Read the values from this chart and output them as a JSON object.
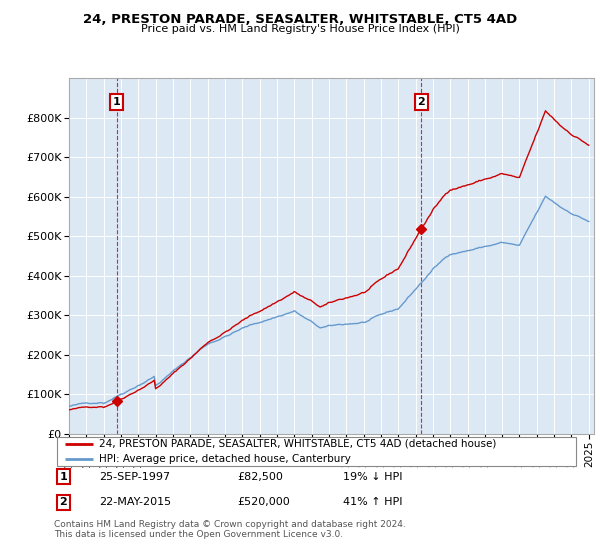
{
  "title": "24, PRESTON PARADE, SEASALTER, WHITSTABLE, CT5 4AD",
  "subtitle": "Price paid vs. HM Land Registry's House Price Index (HPI)",
  "sale1_note": "25-SEP-1997",
  "sale1_price": 82500,
  "sale1_pct": "19% ↓ HPI",
  "sale2_note": "22-MAY-2015",
  "sale2_price": 520000,
  "sale2_pct": "41% ↑ HPI",
  "legend_property": "24, PRESTON PARADE, SEASALTER, WHITSTABLE, CT5 4AD (detached house)",
  "legend_hpi": "HPI: Average price, detached house, Canterbury",
  "footer": "Contains HM Land Registry data © Crown copyright and database right 2024.\nThis data is licensed under the Open Government Licence v3.0.",
  "property_color": "#cc0000",
  "hpi_color": "#6699cc",
  "vline_color": "#cc0000",
  "plot_bg_color": "#dce9f5",
  "background_color": "#ffffff",
  "ylim": [
    0,
    900000
  ],
  "xlim_start": 1995.0,
  "xlim_end": 2025.3
}
